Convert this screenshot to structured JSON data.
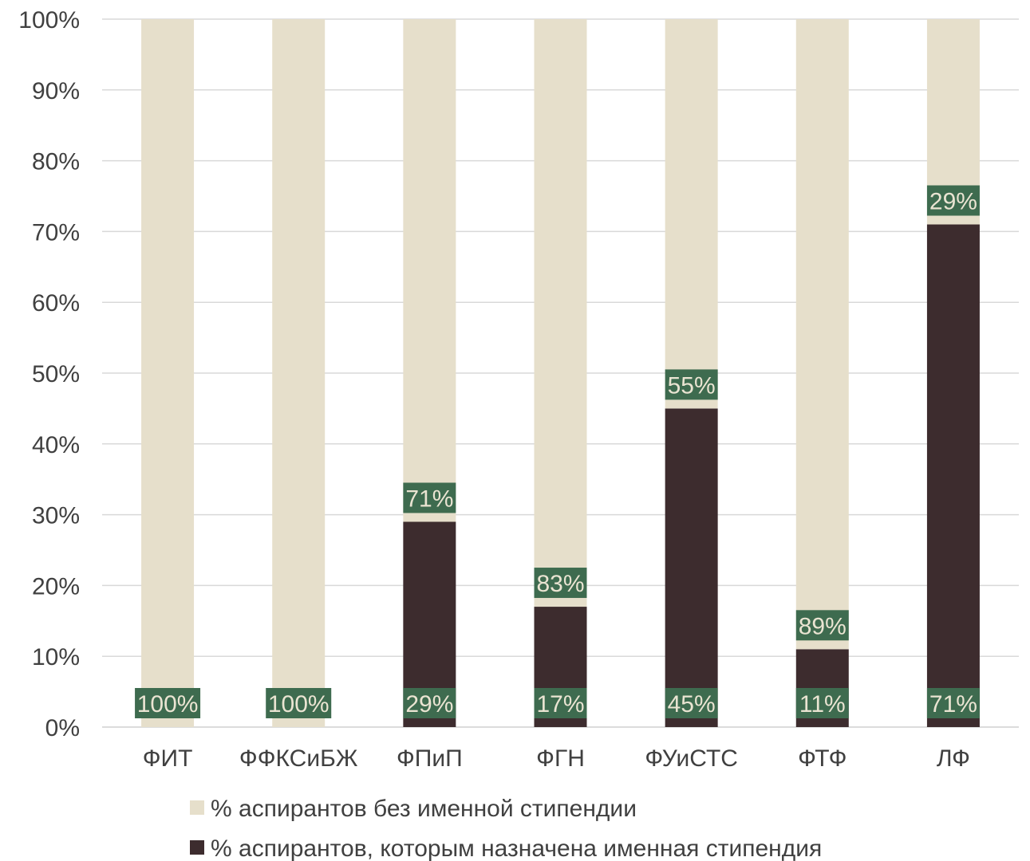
{
  "chart_data": {
    "type": "bar",
    "stacked": true,
    "percent_stacked": true,
    "categories": [
      "ФИТ",
      "ФФКСиБЖ",
      "ФПиП",
      "ФГН",
      "ФУиСТС",
      "ФТФ",
      "ЛФ"
    ],
    "series": [
      {
        "name": "% аспирантов, которым назначена именная стипендия",
        "values": [
          0,
          0,
          29,
          17,
          45,
          11,
          71
        ],
        "labels": [
          "",
          "",
          "29%",
          "17%",
          "45%",
          "11%",
          "71%"
        ],
        "color": "#3d2c2e"
      },
      {
        "name": "% аспирантов без именной стипендии",
        "values": [
          100,
          100,
          71,
          83,
          55,
          89,
          29
        ],
        "labels": [
          "100%",
          "100%",
          "71%",
          "83%",
          "55%",
          "89%",
          "29%"
        ],
        "color": "#e6dfcb"
      }
    ],
    "y_ticks": [
      "0%",
      "10%",
      "20%",
      "30%",
      "40%",
      "50%",
      "60%",
      "70%",
      "80%",
      "90%",
      "100%"
    ],
    "ylim": [
      0,
      100
    ],
    "grid": true,
    "legend_position": "bottom",
    "legend_order": [
      "% аспирантов без именной стипендии",
      "% аспирантов, которым назначена именная стипендия"
    ],
    "data_label_bg": "#3e6b4f",
    "data_label_color": "#eae4d2"
  }
}
